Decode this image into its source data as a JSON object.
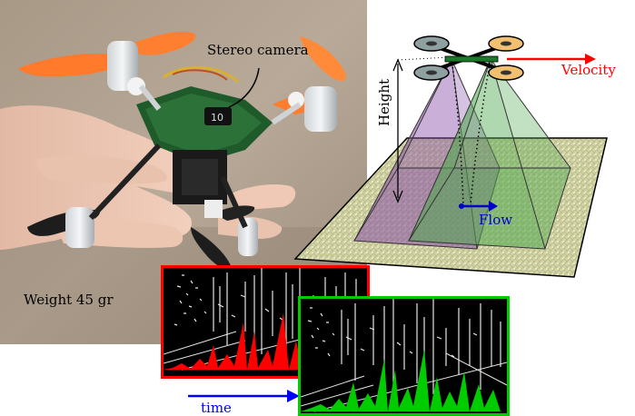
{
  "labels": {
    "stereo_camera": "Stereo camera",
    "weight": "Weight 45 gr",
    "velocity": "Velocity",
    "height": "Height",
    "flow": "Flow",
    "time": "time"
  },
  "colors": {
    "velocity": "#ff0000",
    "flow": "#0000cc",
    "time": "#0000ff",
    "frame1_border": "#ff0000",
    "frame2_border": "#00cc00",
    "cone_left": "#8a4fa8",
    "cone_right": "#4fa84f",
    "floor": "#d8d9a8"
  }
}
